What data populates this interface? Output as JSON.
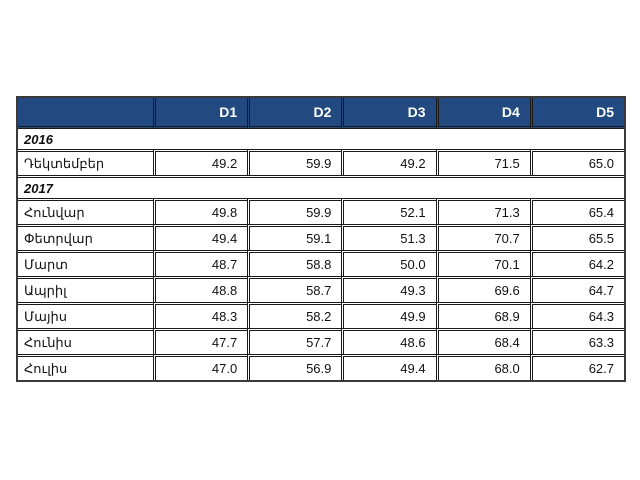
{
  "table": {
    "columns": [
      "",
      "D1",
      "D2",
      "D3",
      "D4",
      "D5"
    ],
    "groups": [
      {
        "year": "2016",
        "rows": [
          {
            "label": "Դեկտեմբեր",
            "values": [
              "49.2",
              "59.9",
              "49.2",
              "71.5",
              "65.0"
            ]
          }
        ]
      },
      {
        "year": "2017",
        "rows": [
          {
            "label": "Հունվար",
            "values": [
              "49.8",
              "59.9",
              "52.1",
              "71.3",
              "65.4"
            ]
          },
          {
            "label": "Փետրվար",
            "values": [
              "49.4",
              "59.1",
              "51.3",
              "70.7",
              "65.5"
            ]
          },
          {
            "label": "Մարտ",
            "values": [
              "48.7",
              "58.8",
              "50.0",
              "70.1",
              "64.2"
            ]
          },
          {
            "label": "Ապրիլ",
            "values": [
              "48.8",
              "58.7",
              "49.3",
              "69.6",
              "64.7"
            ]
          },
          {
            "label": "Մայիս",
            "values": [
              "48.3",
              "58.2",
              "49.9",
              "68.9",
              "64.3"
            ]
          },
          {
            "label": "Հունիս",
            "values": [
              "47.7",
              "57.7",
              "48.6",
              "68.4",
              "63.3"
            ]
          },
          {
            "label": "Հուլիս",
            "values": [
              "47.0",
              "56.9",
              "49.4",
              "68.0",
              "62.7"
            ]
          }
        ]
      }
    ]
  }
}
